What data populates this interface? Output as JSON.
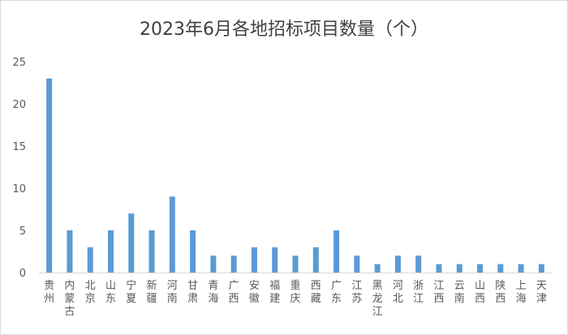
{
  "chart_data": {
    "type": "bar",
    "title": "2023年6月各地招标项目数量（个）",
    "xlabel": "",
    "ylabel": "",
    "categories": [
      "贵州",
      "内蒙古",
      "北京",
      "山东",
      "宁夏",
      "新疆",
      "河南",
      "甘肃",
      "青海",
      "广西",
      "安徽",
      "福建",
      "重庆",
      "西藏",
      "广东",
      "江苏",
      "黑龙江",
      "河北",
      "浙江",
      "江西",
      "云南",
      "山西",
      "陕西",
      "上海",
      "天津"
    ],
    "values": [
      23,
      5,
      3,
      5,
      7,
      5,
      9,
      5,
      2,
      2,
      3,
      3,
      2,
      3,
      5,
      2,
      1,
      2,
      2,
      1,
      1,
      1,
      1,
      1,
      1
    ],
    "ylim": [
      0,
      25
    ],
    "yticks": [
      0,
      5,
      10,
      15,
      20,
      25
    ],
    "grid": false,
    "legend": "none",
    "bar_color": "#5b9bd5"
  }
}
